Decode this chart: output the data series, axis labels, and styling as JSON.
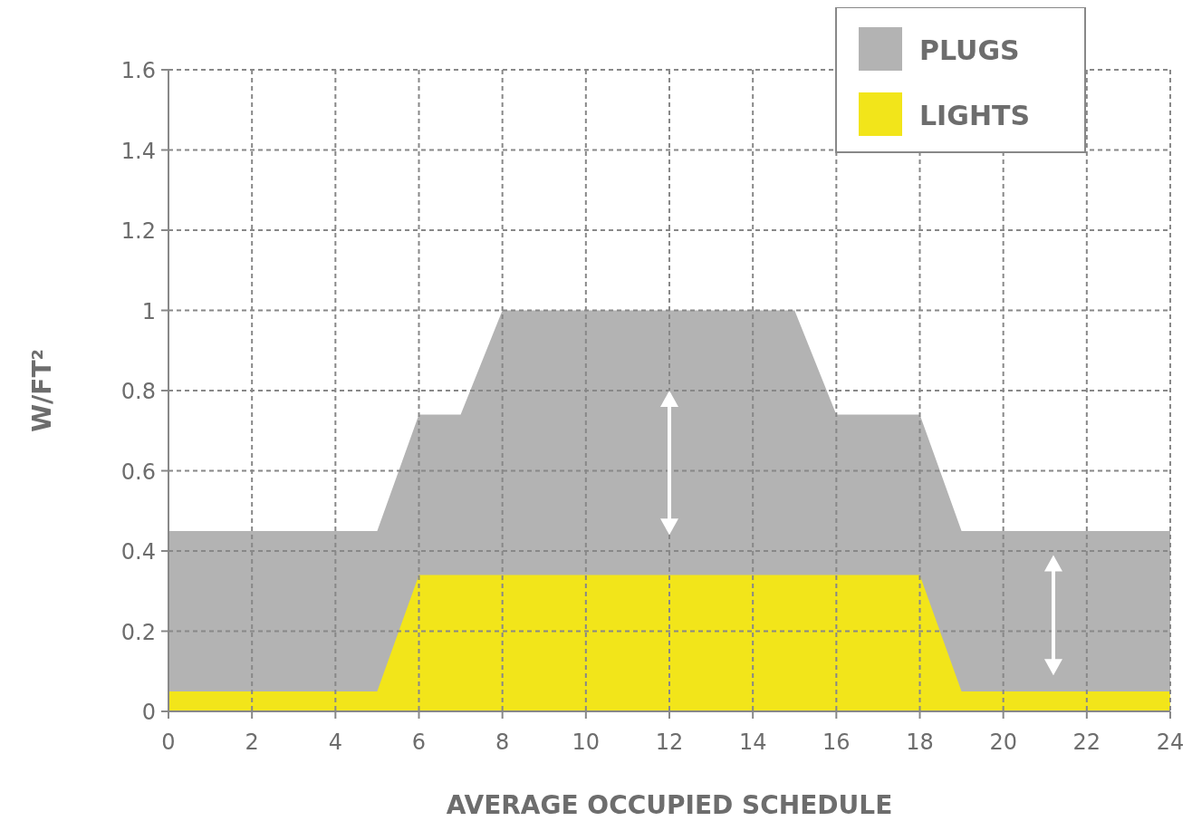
{
  "chart_data": {
    "type": "area",
    "xlabel": "AVERAGE OCCUPIED SCHEDULE",
    "ylabel": "W/FT²",
    "xlim": [
      0,
      24
    ],
    "xticks": [
      0,
      2,
      4,
      6,
      8,
      10,
      12,
      14,
      16,
      18,
      20,
      22,
      24
    ],
    "ylim": [
      0,
      1.6
    ],
    "yticks": [
      0,
      0.2,
      0.4,
      0.6,
      0.8,
      1,
      1.2,
      1.4,
      1.6
    ],
    "grid": true,
    "line_style": "dashed",
    "legend": "top right",
    "series": [
      {
        "name": "PLUGS",
        "color": "#b3b3b3",
        "x": [
          0,
          5,
          6,
          7,
          8,
          15,
          16,
          18,
          19,
          24
        ],
        "values": [
          0.45,
          0.45,
          0.74,
          0.74,
          1,
          1,
          0.74,
          0.74,
          0.45,
          0.45
        ]
      },
      {
        "name": "LIGHTS",
        "color": "#f2e51a",
        "x": [
          0,
          5,
          6,
          18,
          19,
          24
        ],
        "values": [
          0.05,
          0.05,
          0.34,
          0.34,
          0.05,
          0.05
        ]
      }
    ]
  }
}
